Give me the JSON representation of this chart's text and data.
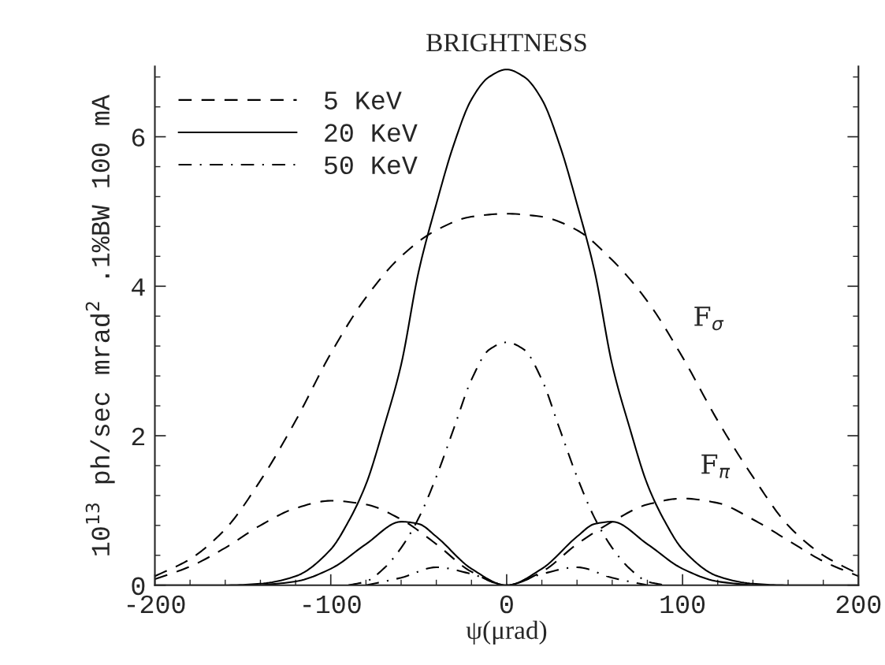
{
  "chart_data": {
    "type": "line",
    "title": "BRIGHTNESS",
    "xlabel": "ψ(μrad)",
    "ylabel": "10$^{13}$ ph/sec mrad$^{2}$ .1%BW 100 mA",
    "xlim": [
      -200,
      200
    ],
    "ylim": [
      0,
      6.94
    ],
    "xticks": [
      -200,
      {
        "value": -180,
        "label": null
      },
      {
        "value": -160,
        "label": null
      },
      {
        "value": -140,
        "label": null
      },
      {
        "value": -120,
        "label": null
      },
      -100,
      {
        "value": -80,
        "label": null
      },
      {
        "value": -60,
        "label": null
      },
      {
        "value": -40,
        "label": null
      },
      {
        "value": -20,
        "label": null
      },
      0,
      {
        "value": 20,
        "label": null
      },
      {
        "value": 40,
        "label": null
      },
      {
        "value": 60,
        "label": null
      },
      {
        "value": 80,
        "label": null
      },
      100,
      {
        "value": 120,
        "label": null
      },
      {
        "value": 140,
        "label": null
      },
      {
        "value": 160,
        "label": null
      },
      {
        "value": 180,
        "label": null
      },
      200
    ],
    "yticks": [
      0,
      {
        "value": 0.4,
        "label": null
      },
      {
        "value": 0.8,
        "label": null
      },
      {
        "value": 1.2,
        "label": null
      },
      {
        "value": 1.6,
        "label": null
      },
      2,
      {
        "value": 2.4,
        "label": null
      },
      {
        "value": 2.8,
        "label": null
      },
      {
        "value": 3.2,
        "label": null
      },
      {
        "value": 3.6,
        "label": null
      },
      4,
      {
        "value": 4.4,
        "label": null
      },
      {
        "value": 4.8,
        "label": null
      },
      {
        "value": 5.2,
        "label": null
      },
      {
        "value": 5.6,
        "label": null
      },
      6,
      {
        "value": 6.4,
        "label": null
      },
      {
        "value": 6.8,
        "label": null
      }
    ],
    "grid": false,
    "legend": "top left",
    "series": [
      {
        "name": "5 KeV",
        "color": "#000000",
        "line_style": "dashed",
        "x": [
          -200,
          -180,
          -160,
          -140,
          -120,
          -100,
          -80,
          -60,
          -40,
          -20,
          0,
          20,
          40,
          60,
          80,
          100,
          120,
          140,
          160,
          180,
          200
        ],
        "values": [
          0.12,
          0.35,
          0.75,
          1.4,
          2.2,
          3.1,
          3.85,
          4.4,
          4.75,
          4.93,
          4.97,
          4.93,
          4.75,
          4.35,
          3.8,
          3.05,
          2.2,
          1.45,
          0.8,
          0.4,
          0.15
        ]
      },
      {
        "color": "#000000",
        "line_style": "dashed",
        "x": [
          -200,
          -180,
          -160,
          -140,
          -120,
          -100,
          -80,
          -60,
          -40,
          -20,
          0,
          20,
          40,
          60,
          80,
          100,
          120,
          140,
          160,
          180,
          200
        ],
        "values": [
          0.08,
          0.25,
          0.5,
          0.8,
          1.03,
          1.13,
          1.08,
          0.88,
          0.55,
          0.18,
          0,
          0.18,
          0.55,
          0.85,
          1.08,
          1.16,
          1.1,
          0.88,
          0.6,
          0.32,
          0.12
        ]
      },
      {
        "name": "20 KeV",
        "color": "#000000",
        "line_style": "solid",
        "x": [
          -200,
          -160,
          -140,
          -120,
          -100,
          -90,
          -80,
          -70,
          -60,
          -50,
          -40,
          -30,
          -20,
          -10,
          0,
          10,
          20,
          30,
          40,
          50,
          60,
          70,
          80,
          90,
          100,
          120,
          140,
          160,
          200
        ],
        "values": [
          0,
          0,
          0.02,
          0.12,
          0.48,
          0.85,
          1.35,
          2.1,
          2.95,
          4.2,
          5.1,
          5.9,
          6.5,
          6.8,
          6.9,
          6.8,
          6.5,
          5.9,
          5.1,
          4.2,
          2.95,
          2.1,
          1.35,
          0.85,
          0.48,
          0.12,
          0.02,
          0,
          0
        ]
      },
      {
        "color": "#000000",
        "line_style": "solid",
        "x": [
          -140,
          -120,
          -100,
          -80,
          -60,
          -50,
          -40,
          -20,
          0,
          20,
          40,
          50,
          60,
          80,
          100,
          120,
          140
        ],
        "values": [
          0,
          0.05,
          0.22,
          0.55,
          0.85,
          0.82,
          0.65,
          0.22,
          0,
          0.22,
          0.65,
          0.82,
          0.85,
          0.55,
          0.22,
          0.05,
          0
        ]
      },
      {
        "name": "50 KeV",
        "color": "#000000",
        "line_style": "dashdot",
        "x": [
          -90,
          -80,
          -70,
          -60,
          -50,
          -40,
          -30,
          -20,
          -10,
          0,
          10,
          20,
          30,
          40,
          50,
          60,
          70,
          80,
          90
        ],
        "values": [
          0,
          0.05,
          0.22,
          0.5,
          0.9,
          1.45,
          2.1,
          2.75,
          3.15,
          3.25,
          3.15,
          2.75,
          2.1,
          1.45,
          0.9,
          0.5,
          0.22,
          0.05,
          0
        ]
      },
      {
        "color": "#000000",
        "line_style": "dashdot",
        "x": [
          -80,
          -60,
          -40,
          -20,
          0,
          20,
          40,
          60,
          80
        ],
        "values": [
          0,
          0.1,
          0.24,
          0.15,
          0,
          0.15,
          0.24,
          0.1,
          0
        ]
      }
    ],
    "annotations": [
      "F$_{σ}$",
      "F$_{π}$"
    ]
  }
}
